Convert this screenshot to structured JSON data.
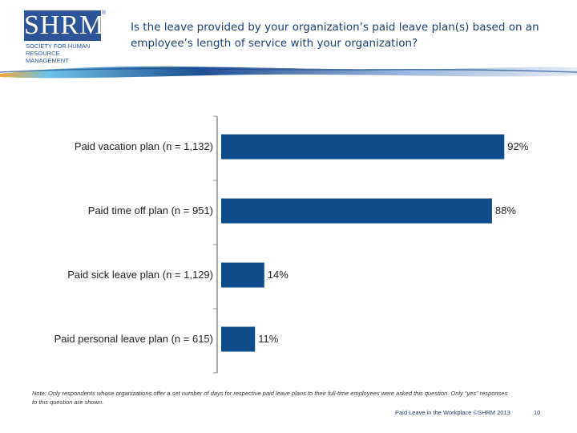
{
  "header": {
    "logo_text": "SHRM",
    "logo_registered": "®",
    "logo_subtitle": "SOCIETY FOR HUMAN RESOURCE MANAGEMENT",
    "title": "Is the leave provided by your organization’s paid leave plan(s) based on an employee’s length of service with your organization?"
  },
  "colors": {
    "bar": "#0f4c8a",
    "axis": "#8c8c8c",
    "brand": "#2b5596"
  },
  "chart_data": {
    "type": "bar",
    "orientation": "horizontal",
    "title": "Is the leave provided by your organization’s paid leave plan(s) based on an employee’s length of service with your organization?",
    "categories": [
      "Paid vacation plan (n = 1,132)",
      "Paid time off plan (n = 951)",
      "Paid sick leave plan (n = 1,129)",
      "Paid personal leave plan (n = 615)"
    ],
    "values": [
      92,
      88,
      14,
      11
    ],
    "value_labels": [
      "92%",
      "88%",
      "14%",
      "11%"
    ],
    "unit": "%",
    "xlim": [
      0,
      100
    ],
    "xlabel": "",
    "ylabel": "",
    "grid": false,
    "legend": "none"
  },
  "note": "Note: Only respondents whose organizations offer a set number of days for respective paid leave plans to their full-time employees were asked this question. Only “yes” responses to this question are shown.",
  "footer": {
    "source": "Paid Leave in the Workplace ©SHRM 2013",
    "page_number": "10"
  }
}
